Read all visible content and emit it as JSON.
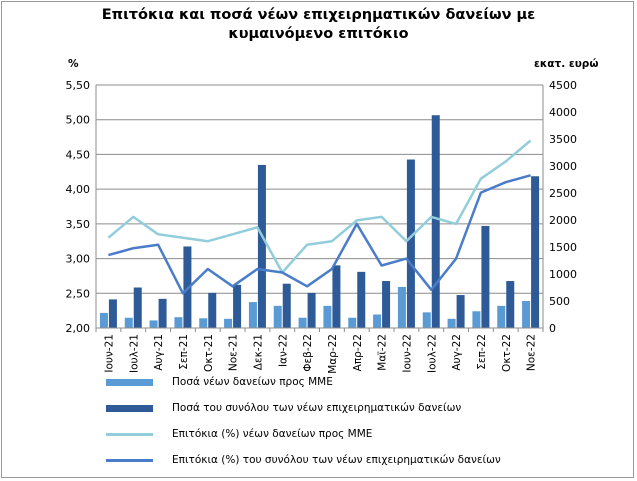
{
  "title": {
    "line1": "Επιτόκια και ποσά νέων επιχειρηματικών  δανείων με",
    "line2": "κυμαινόμενο επιτόκιο"
  },
  "units": {
    "left": "%",
    "right": "εκατ. ευρώ"
  },
  "chart_data": {
    "type": "bar",
    "categories": [
      "Ιουν-21",
      "Ιουλ-21",
      "Αυγ-21",
      "Σεπ-21",
      "Οκτ-21",
      "Νοε-21",
      "Δεκ-21",
      "Ιαν-22",
      "Φεβ-22",
      "Μαρ-22",
      "Απρ-22",
      "Μαϊ-22",
      "Ιουν-22",
      "Ιουλ-22",
      "Αυγ-22",
      "Σεπ-22",
      "Οκτ-22",
      "Νοε-22"
    ],
    "left_axis": {
      "min": 2.0,
      "max": 5.5,
      "step": 0.5,
      "ticks": [
        "2,00",
        "2,50",
        "3,00",
        "3,50",
        "4,00",
        "4,50",
        "5,00",
        "5,50"
      ]
    },
    "right_axis": {
      "min": 0,
      "max": 4500,
      "step": 500,
      "ticks": [
        "0",
        "500",
        "1000",
        "1500",
        "2000",
        "2500",
        "3000",
        "3500",
        "4000",
        "4500"
      ]
    },
    "grid": true,
    "legend_position": "bottom",
    "series": [
      {
        "name": "Ποσά νέων δανείων προς ΜΜΕ",
        "type": "bar",
        "axis": "right",
        "color": "#5b9bd5",
        "values": [
          280,
          190,
          140,
          200,
          180,
          170,
          480,
          410,
          190,
          410,
          190,
          250,
          760,
          290,
          170,
          310,
          410,
          500
        ]
      },
      {
        "name": "Ποσά του συνόλου των νέων επιχειρηματικών δανείων",
        "type": "bar",
        "axis": "right",
        "color": "#2e5b97",
        "values": [
          530,
          750,
          540,
          1510,
          650,
          800,
          3020,
          820,
          650,
          1160,
          1040,
          870,
          3120,
          3940,
          610,
          1890,
          870,
          2810
        ]
      },
      {
        "name": "Επιτόκια (%) νέων δανείων προς ΜΜΕ",
        "type": "line",
        "axis": "left",
        "color": "#92cddc",
        "values": [
          3.3,
          3.6,
          3.35,
          3.3,
          3.25,
          3.35,
          3.45,
          2.8,
          3.2,
          3.25,
          3.55,
          3.6,
          3.25,
          3.6,
          3.5,
          4.15,
          4.4,
          4.7
        ]
      },
      {
        "name": "Επιτόκια (%) του συνόλου των νέων επιχειρηματικών δανείων",
        "type": "line",
        "axis": "left",
        "color": "#4a7cc9",
        "values": [
          3.05,
          3.15,
          3.2,
          2.5,
          2.85,
          2.6,
          2.85,
          2.8,
          2.6,
          2.85,
          3.5,
          2.9,
          3.0,
          2.55,
          3.0,
          3.95,
          4.1,
          4.2
        ]
      }
    ]
  }
}
